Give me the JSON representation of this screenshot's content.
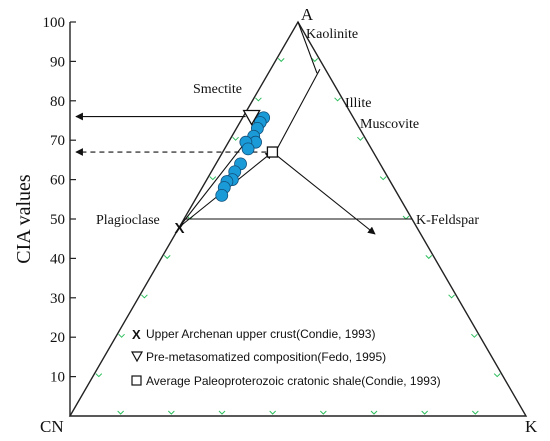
{
  "chart_data": {
    "type": "scatter",
    "subtype": "ternary-A-CN-K",
    "ylabel": "CIA values",
    "ylim": [
      0,
      100
    ],
    "y_ticks": [
      10,
      20,
      30,
      40,
      50,
      60,
      70,
      80,
      90,
      100
    ],
    "vertices": {
      "top": "A",
      "left": "CN",
      "right": "K"
    },
    "mineral_labels": [
      {
        "name": "Kaolinite",
        "cia": 97,
        "at": "top"
      },
      {
        "name": "Smectite",
        "cia": 79,
        "at": "left-of-line"
      },
      {
        "name": "Illite",
        "cia": 79,
        "at": "right-edge"
      },
      {
        "name": "Muscovite",
        "cia": 75,
        "at": "right-edge"
      },
      {
        "name": "Plagioclase",
        "cia": 50,
        "at": "left-edge"
      },
      {
        "name": "K-Feldspar",
        "cia": 50,
        "at": "right-edge"
      }
    ],
    "samples": [
      {
        "cia": 75.5,
        "k_frac": 0.18
      },
      {
        "cia": 75.7,
        "k_frac": 0.19
      },
      {
        "cia": 74.5,
        "k_frac": 0.175
      },
      {
        "cia": 73.0,
        "k_frac": 0.17
      },
      {
        "cia": 71.0,
        "k_frac": 0.165
      },
      {
        "cia": 69.5,
        "k_frac": 0.195
      },
      {
        "cia": 69.5,
        "k_frac": 0.125
      },
      {
        "cia": 67.8,
        "k_frac": 0.16
      },
      {
        "cia": 64.0,
        "k_frac": 0.15
      },
      {
        "cia": 62.0,
        "k_frac": 0.135
      },
      {
        "cia": 60.0,
        "k_frac": 0.14
      },
      {
        "cia": 59.5,
        "k_frac": 0.115
      },
      {
        "cia": 58.0,
        "k_frac": 0.115
      },
      {
        "cia": 56.0,
        "k_frac": 0.12
      }
    ],
    "reference_points": [
      {
        "key": "uc",
        "symbol": "x",
        "cia": 48,
        "k_frac": 0.0,
        "label": "Upper Archenan upper crust(Condie, 1993)"
      },
      {
        "key": "pm",
        "symbol": "triangle-down",
        "cia": 75.5,
        "k_frac": 0.085,
        "label": "Pre-metasomatized composition(Fedo, 1995)"
      },
      {
        "key": "sh",
        "symbol": "square",
        "cia": 67,
        "k_frac": 0.33,
        "label": "Average Paleoproterozoic cratonic shale(Condie, 1993)"
      }
    ],
    "colors": {
      "samples_fill": "#1a9bd7",
      "samples_edge": "#124f7a",
      "outline": "#222222",
      "tick_marks": "#2fbf5f"
    }
  }
}
